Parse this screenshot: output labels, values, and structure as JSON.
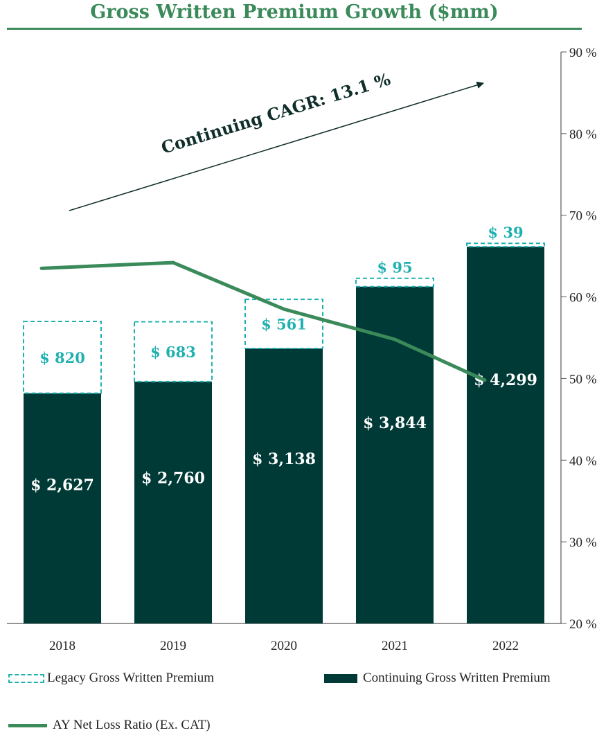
{
  "title": "Gross Written Premium Growth ($mm)",
  "annotation": "Continuing CAGR: 13.1 %",
  "colors": {
    "continuing": "#003a36",
    "legacy": "#1fb0b0",
    "line": "#3a8a5a",
    "title": "#3a8a5a"
  },
  "legend": {
    "legacy": "Legacy Gross Written Premium",
    "continuing": "Continuing Gross Written Premium",
    "line": "AY Net Loss Ratio (Ex. CAT)"
  },
  "chart_data": {
    "type": "bar",
    "stacked": true,
    "categories": [
      "2018",
      "2019",
      "2020",
      "2021",
      "2022"
    ],
    "series": [
      {
        "name": "Continuing Gross Written Premium",
        "values": [
          2627,
          2760,
          3138,
          3844,
          4299
        ],
        "labels": [
          "$ 2,627",
          "$ 2,760",
          "$ 3,138",
          "$ 3,844",
          "$ 4,299"
        ]
      },
      {
        "name": "Legacy Gross Written Premium",
        "values": [
          820,
          683,
          561,
          95,
          39
        ],
        "labels": [
          "$ 820",
          "$ 683",
          "$ 561",
          "$ 95",
          "$ 39"
        ]
      }
    ],
    "line_series": {
      "name": "AY Net Loss Ratio (Ex. CAT)",
      "axis": "right",
      "values": [
        63.5,
        64.2,
        58.5,
        54.8,
        49.8
      ]
    },
    "y2_ticks": [
      "20 %",
      "30 %",
      "40 %",
      "50 %",
      "60 %",
      "70 %",
      "80 %",
      "90 %"
    ],
    "y2lim": [
      20,
      90
    ],
    "legend_position": "bottom"
  }
}
